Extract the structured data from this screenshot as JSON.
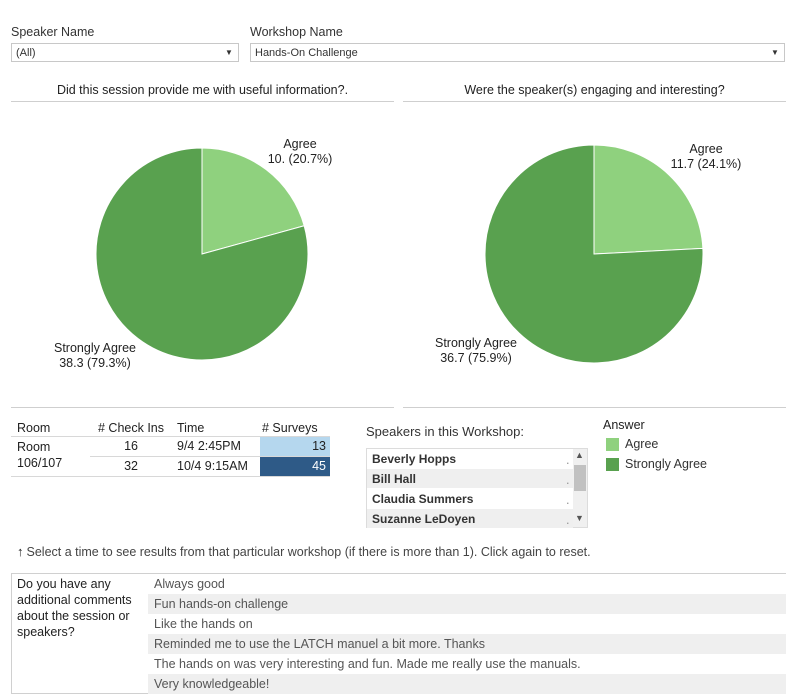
{
  "filters": {
    "speaker": {
      "label": "Speaker Name",
      "value": "(All)"
    },
    "workshop": {
      "label": "Workshop Name",
      "value": "Hands-On Challenge"
    }
  },
  "colors": {
    "agree": "#8fd17e",
    "strongly_agree": "#59a14f",
    "surveys_light": "#b5d7ee",
    "surveys_dark": "#2e5a87"
  },
  "chart_data": [
    {
      "type": "pie",
      "title": "Did this session provide me with useful information?.",
      "categories": [
        "Agree",
        "Strongly Agree"
      ],
      "values": [
        10,
        38.3
      ],
      "labels": [
        "10. (20.7%)",
        "38.3 (79.3%)"
      ]
    },
    {
      "type": "pie",
      "title": "Were the speaker(s) engaging and interesting?",
      "categories": [
        "Agree",
        "Strongly Agree"
      ],
      "values": [
        11.7,
        36.7
      ],
      "labels": [
        "11.7 (24.1%)",
        "36.7 (75.9%)"
      ]
    }
  ],
  "table": {
    "headers": [
      "Room",
      "# Check Ins",
      "Time",
      "# Surveys"
    ],
    "room": [
      "Room",
      "106/107"
    ],
    "rows": [
      {
        "checkins": "16",
        "time": "9/4 2:45PM",
        "surveys": "13"
      },
      {
        "checkins": "32",
        "time": "10/4 9:15AM",
        "surveys": "45"
      }
    ]
  },
  "speakers": {
    "title": "Speakers in this Workshop:",
    "items": [
      "Beverly Hopps",
      "Bill Hall",
      "Claudia Summers",
      "Suzanne LeDoyen"
    ],
    "dot": "."
  },
  "legend": {
    "title": "Answer",
    "items": [
      "Agree",
      "Strongly Agree"
    ]
  },
  "hint": "Select a time to see results from that particular workshop (if there is more than 1). Click again to reset.",
  "comments": {
    "question": [
      "Do you have any",
      "additional comments",
      "about the session or",
      "speakers?"
    ],
    "items": [
      "Always good",
      "Fun hands-on challenge",
      "Like the hands on",
      "Reminded me to use the LATCH manuel a bit more. Thanks",
      "The hands on was very interesting and fun. Made me really use the manuals.",
      "Very knowledgeable!"
    ]
  },
  "icons": {
    "arrow": "chevron-down-icon",
    "hint": "arrow-up-icon"
  }
}
